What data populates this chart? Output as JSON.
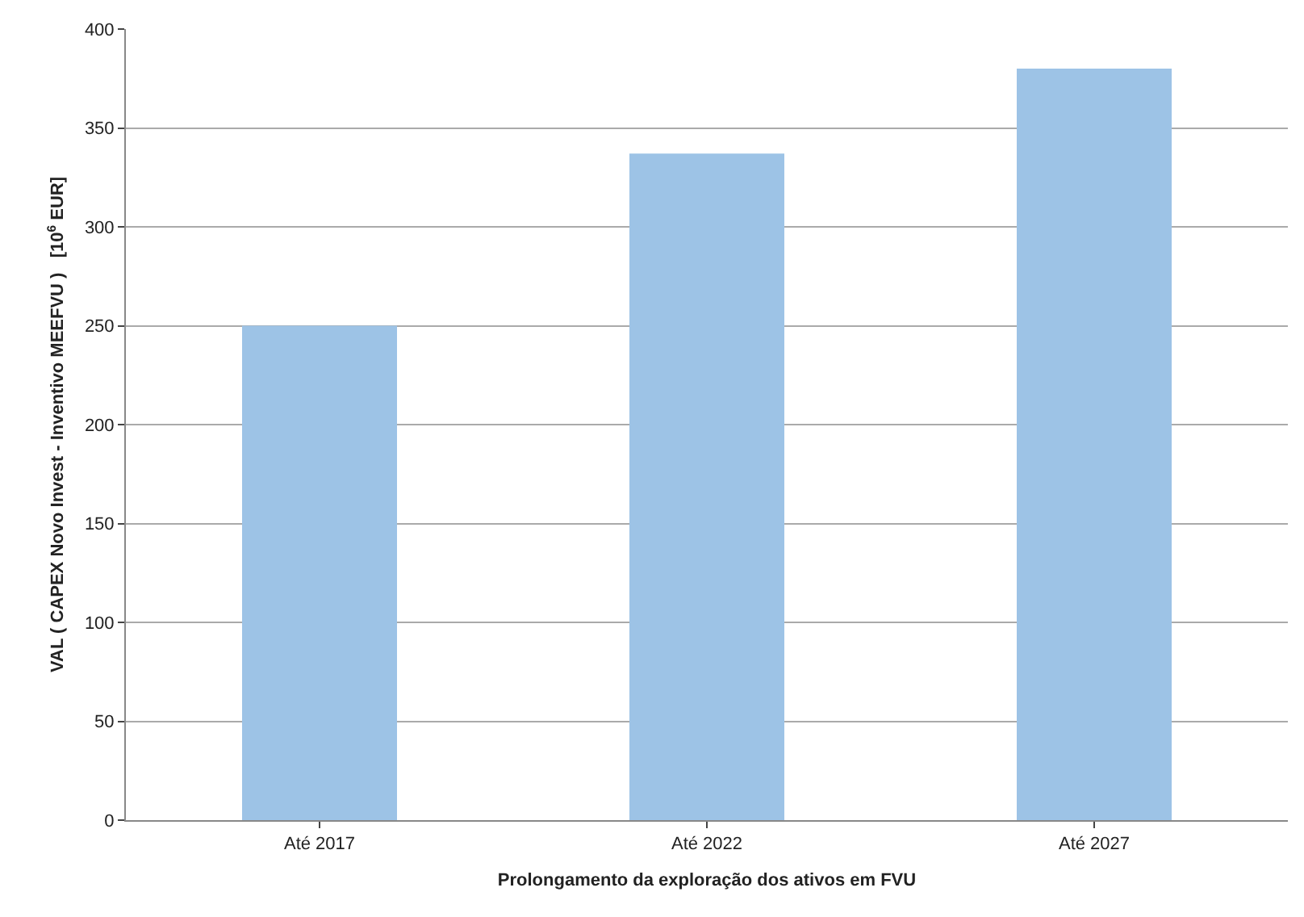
{
  "chart_data": {
    "type": "bar",
    "xlabel": "Prolongamento da exploração dos ativos em FVU",
    "ylabel": "VAL ( CAPEX Novo Invest - Inventivo MEEFVU )   [10$^{6}$ EUR]",
    "categories": [
      "Até 2017",
      "Até 2022",
      "Até 2027"
    ],
    "values": [
      250,
      337,
      380
    ],
    "color": "#9dc3e6",
    "ylim": [
      0,
      400
    ],
    "yticks": [
      0,
      50,
      100,
      150,
      200,
      250,
      300,
      350,
      400
    ],
    "grid": "y"
  }
}
